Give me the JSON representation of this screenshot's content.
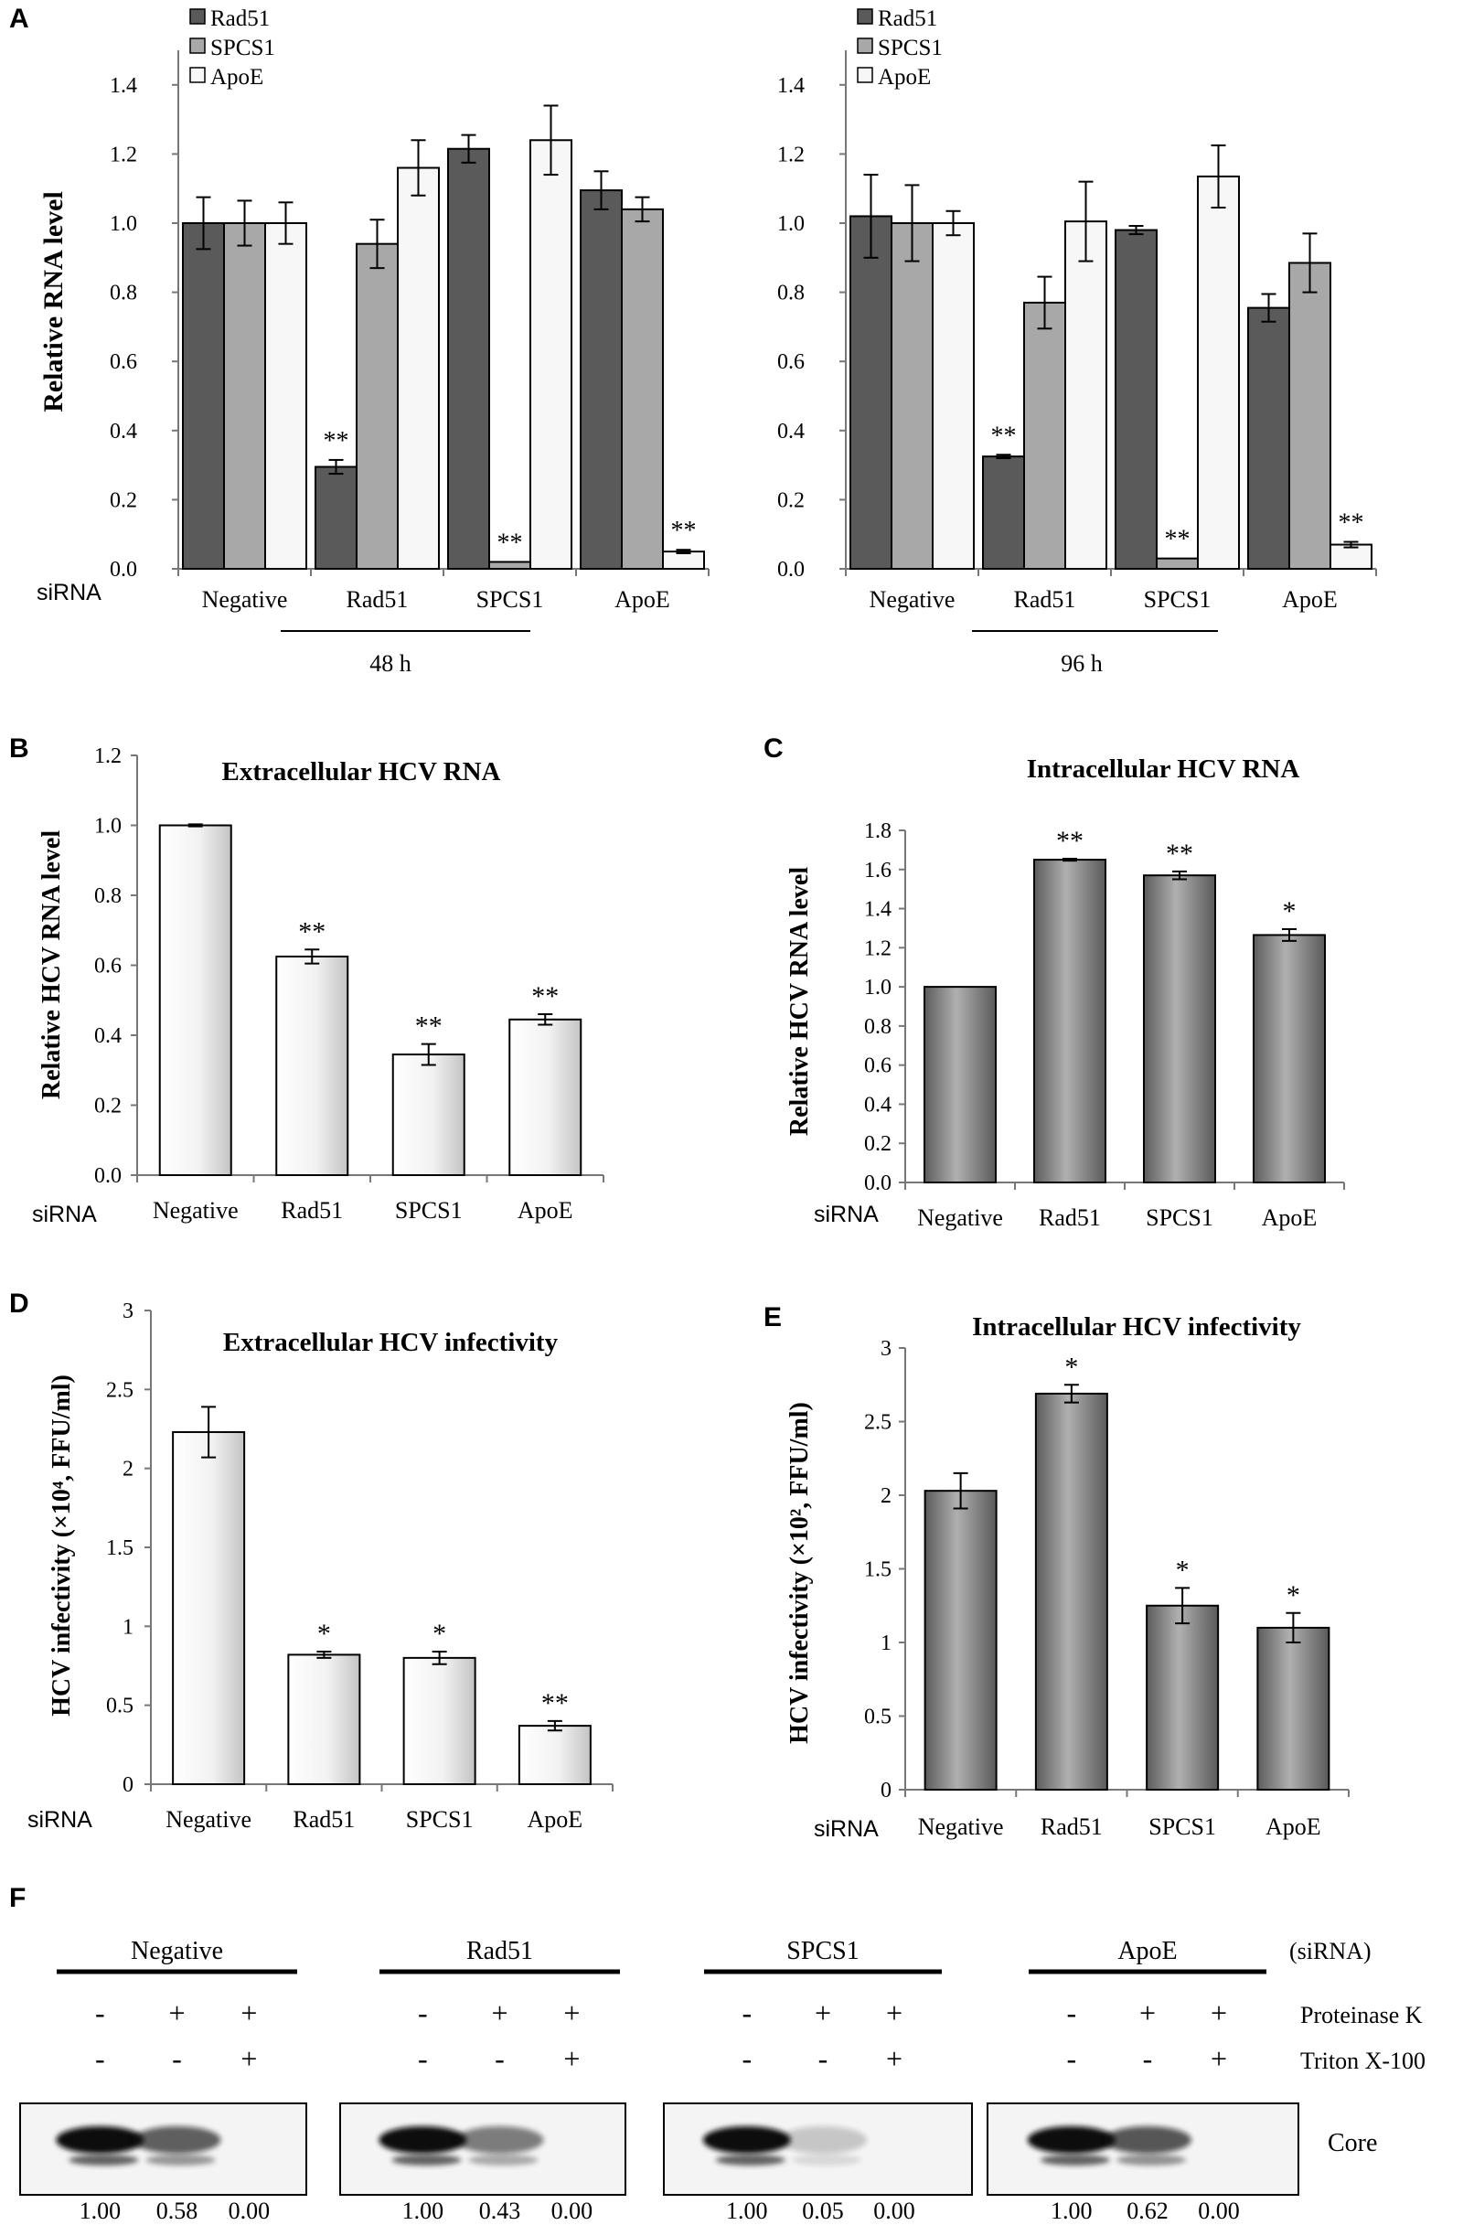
{
  "panels": {
    "A": {
      "letter": "A",
      "ylabel": "Relative RNA level",
      "siRNA_label": "siRNA",
      "group_labels": [
        "48 h",
        "96 h"
      ]
    },
    "B": {
      "letter": "B"
    },
    "C": {
      "letter": "C"
    },
    "D": {
      "letter": "D"
    },
    "E": {
      "letter": "E"
    },
    "F": {
      "letter": "F",
      "groups": [
        "Negative",
        "Rad51",
        "SPCS1",
        "ApoE"
      ],
      "header_right": "(siRNA)",
      "proteinase_row": [
        "-",
        "+",
        "+"
      ],
      "triton_row": [
        "-",
        "-",
        "+"
      ],
      "row_label_proteinase": "Proteinase K",
      "row_label_triton": "Triton X-100",
      "band_label": "Core",
      "quantification": [
        [
          "1.00",
          "0.58",
          "0.00"
        ],
        [
          "1.00",
          "0.43",
          "0.00"
        ],
        [
          "1.00",
          "0.05",
          "0.00"
        ],
        [
          "1.00",
          "0.62",
          "0.00"
        ]
      ]
    }
  },
  "chart_data": [
    {
      "id": "A-48h",
      "type": "bar",
      "categories": [
        "Negative",
        "Rad51",
        "SPCS1",
        "ApoE"
      ],
      "series": [
        {
          "name": "Rad51",
          "color": "#5a5a5a",
          "values": [
            1.0,
            0.295,
            1.215,
            1.095
          ],
          "errors": [
            0.075,
            0.02,
            0.04,
            0.055
          ],
          "sig": [
            "",
            "**",
            "",
            ""
          ]
        },
        {
          "name": "SPCS1",
          "color": "#a8a8a8",
          "values": [
            1.0,
            0.94,
            0.02,
            1.04
          ],
          "errors": [
            0.065,
            0.07,
            0.0,
            0.035
          ],
          "sig": [
            "",
            "",
            "**",
            ""
          ]
        },
        {
          "name": "ApoE",
          "color": "#f7f7f7",
          "values": [
            1.0,
            1.16,
            1.24,
            0.05
          ],
          "errors": [
            0.06,
            0.08,
            0.1,
            0.005
          ],
          "sig": [
            "",
            "",
            "",
            "**"
          ]
        }
      ],
      "yticks": [
        "0.0",
        "0.2",
        "0.4",
        "0.6",
        "0.8",
        "1.0",
        "1.2",
        "1.4"
      ],
      "ylim": [
        0,
        1.5
      ],
      "ylabel": "Relative RNA level",
      "group_label": "48 h"
    },
    {
      "id": "A-96h",
      "type": "bar",
      "categories": [
        "Negative",
        "Rad51",
        "SPCS1",
        "ApoE"
      ],
      "series": [
        {
          "name": "Rad51",
          "color": "#5a5a5a",
          "values": [
            1.02,
            0.325,
            0.98,
            0.755
          ],
          "errors": [
            0.12,
            0.005,
            0.012,
            0.04
          ],
          "sig": [
            "",
            "**",
            "",
            ""
          ]
        },
        {
          "name": "SPCS1",
          "color": "#a8a8a8",
          "values": [
            1.0,
            0.77,
            0.03,
            0.885
          ],
          "errors": [
            0.11,
            0.075,
            0.0,
            0.085
          ],
          "sig": [
            "",
            "",
            "**",
            ""
          ]
        },
        {
          "name": "ApoE",
          "color": "#f7f7f7",
          "values": [
            1.0,
            1.005,
            1.135,
            0.07
          ],
          "errors": [
            0.035,
            0.115,
            0.09,
            0.008
          ],
          "sig": [
            "",
            "",
            "",
            "**"
          ]
        }
      ],
      "yticks": [
        "0.0",
        "0.2",
        "0.4",
        "0.6",
        "0.8",
        "1.0",
        "1.2",
        "1.4"
      ],
      "ylim": [
        0,
        1.5
      ],
      "group_label": "96 h"
    },
    {
      "id": "B",
      "type": "bar",
      "title": "Extracellular HCV RNA",
      "ylabel": "Relative HCV RNA level",
      "categories": [
        "Negative",
        "Rad51",
        "SPCS1",
        "ApoE"
      ],
      "values": [
        1.0,
        0.625,
        0.345,
        0.445
      ],
      "errors": [
        0.003,
        0.02,
        0.03,
        0.015
      ],
      "sig": [
        "",
        "**",
        "**",
        "**"
      ],
      "color": "light",
      "yticks": [
        "0.0",
        "0.2",
        "0.4",
        "0.6",
        "0.8",
        "1.0",
        "1.2"
      ],
      "ylim": [
        0,
        1.2
      ]
    },
    {
      "id": "C",
      "type": "bar",
      "title": "Intracellular HCV RNA",
      "ylabel": "Relative HCV RNA level",
      "categories": [
        "Negative",
        "Rad51",
        "SPCS1",
        "ApoE"
      ],
      "values": [
        1.0,
        1.65,
        1.57,
        1.265
      ],
      "errors": [
        0.0,
        0.005,
        0.02,
        0.03
      ],
      "sig": [
        "",
        "**",
        "**",
        "*"
      ],
      "color": "dark",
      "yticks": [
        "0.0",
        "0.2",
        "0.4",
        "0.6",
        "0.8",
        "1.0",
        "1.2",
        "1.4",
        "1.6",
        "1.8"
      ],
      "ylim": [
        0,
        1.8
      ]
    },
    {
      "id": "D",
      "type": "bar",
      "title": "Extracellular HCV infectivity",
      "ylabel": "HCV infectivity (×10⁴, FFU/ml)",
      "categories": [
        "Negative",
        "Rad51",
        "SPCS1",
        "ApoE"
      ],
      "values": [
        2.23,
        0.82,
        0.8,
        0.37
      ],
      "errors": [
        0.16,
        0.02,
        0.04,
        0.03
      ],
      "sig": [
        "",
        "*",
        "*",
        "**"
      ],
      "color": "light",
      "yticks": [
        "0",
        "0.5",
        "1",
        "1.5",
        "2",
        "2.5",
        "3"
      ],
      "ylim": [
        0,
        3
      ]
    },
    {
      "id": "E",
      "type": "bar",
      "title": "Intracellular HCV infectivity",
      "ylabel": "HCV infectivity (×10², FFU/ml)",
      "categories": [
        "Negative",
        "Rad51",
        "SPCS1",
        "ApoE"
      ],
      "values": [
        2.03,
        2.69,
        1.25,
        1.1
      ],
      "errors": [
        0.12,
        0.06,
        0.12,
        0.1
      ],
      "sig": [
        "",
        "*",
        "*",
        "*"
      ],
      "color": "dark",
      "yticks": [
        "0",
        "0.5",
        "1",
        "1.5",
        "2",
        "2.5",
        "3"
      ],
      "ylim": [
        0,
        3
      ]
    }
  ]
}
